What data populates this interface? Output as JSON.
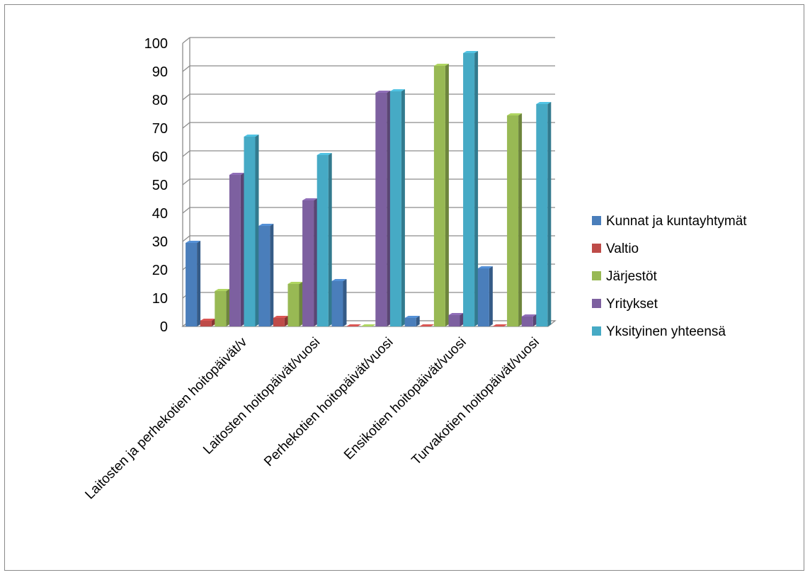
{
  "chart_data": {
    "type": "bar",
    "title": "",
    "xlabel": "",
    "ylabel": "",
    "ylim": [
      0,
      100
    ],
    "yticks": [
      "0",
      "10",
      "20",
      "30",
      "40",
      "50",
      "60",
      "70",
      "80",
      "90",
      "100"
    ],
    "grid": true,
    "legend_position": "right",
    "categories": [
      "Laitosten ja perhekotien hoitopäivät/v",
      "Laitosten hoitopäivät/vuosi",
      "Perhekotien hoitopäivät/vuosi",
      "Ensikotien hoitopäivät/vuosi",
      "Turvakotien hoitopäivät/vuosi"
    ],
    "series": [
      {
        "name": "Kunnat ja kuntayhtymät",
        "color": "#4a7ebb",
        "values": [
          29.5,
          35.5,
          16,
          3,
          20.5
        ]
      },
      {
        "name": "Valtio",
        "color": "#be4b48",
        "values": [
          2,
          3,
          0,
          0,
          0
        ]
      },
      {
        "name": "Järjestöt",
        "color": "#98b954",
        "values": [
          12.5,
          15,
          0,
          92,
          74.5
        ]
      },
      {
        "name": "Yritykset",
        "color": "#7d60a0",
        "values": [
          53.5,
          44.5,
          82.5,
          4,
          3.5
        ]
      },
      {
        "name": "Yksityinen yhteensä",
        "color": "#46aac5",
        "values": [
          67,
          60.5,
          83,
          96.5,
          78.5
        ]
      }
    ]
  }
}
